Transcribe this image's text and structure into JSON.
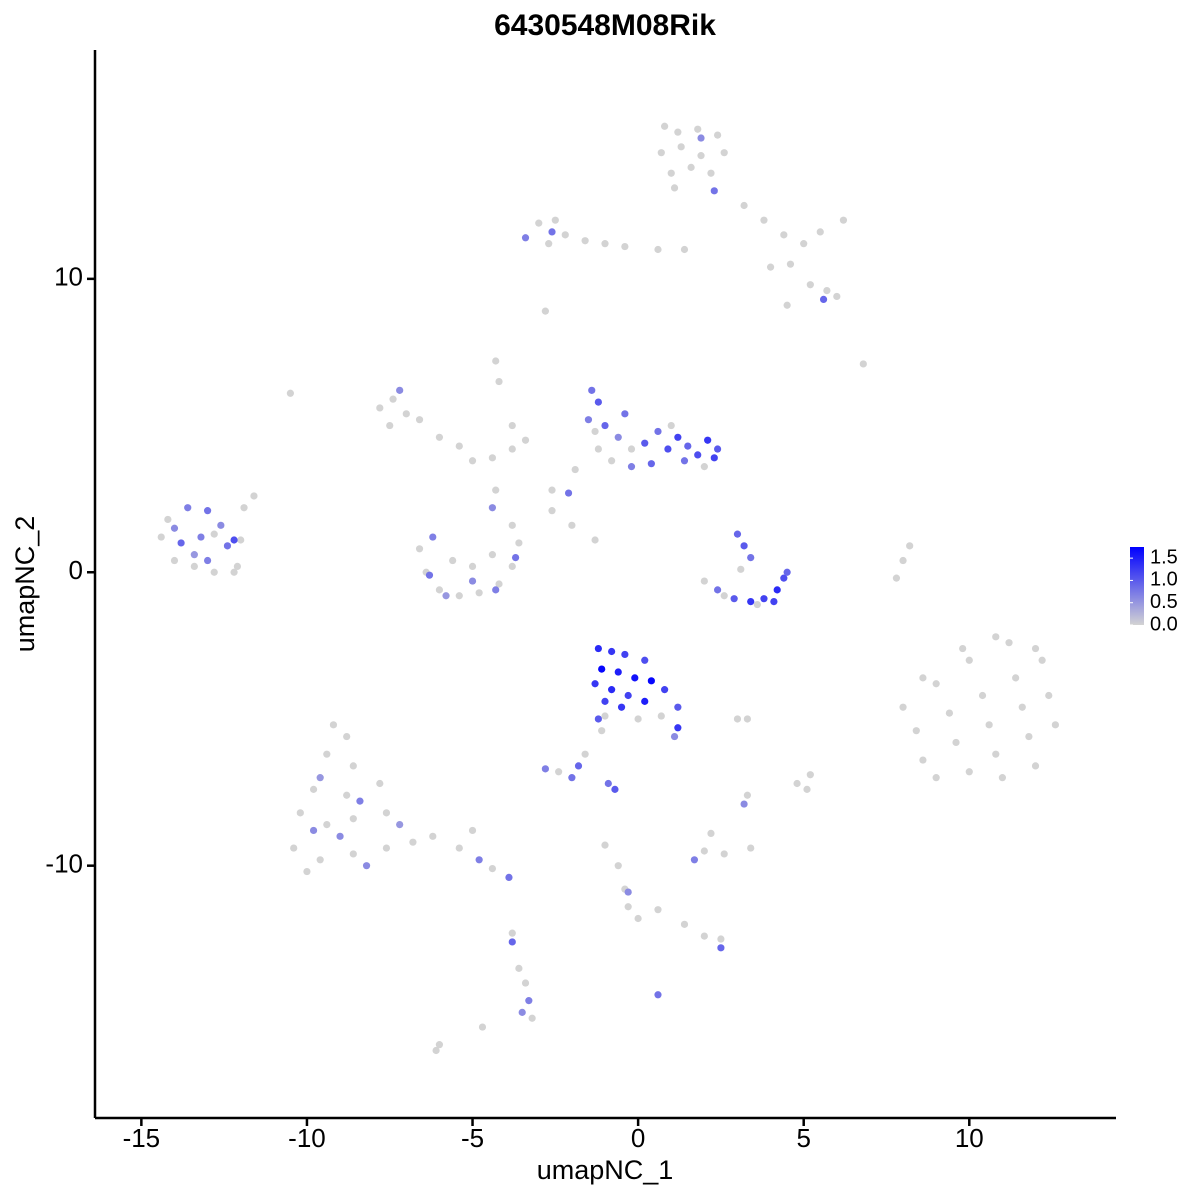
{
  "chart_data": {
    "type": "scatter",
    "title": "6430548M08Rik",
    "x_label": "umapNC_1",
    "y_label": "umapNC_2",
    "xlim": [
      -16.4,
      14.4
    ],
    "ylim": [
      -18.6,
      17.8
    ],
    "xticks": [
      -15,
      -10,
      -5,
      0,
      5,
      10
    ],
    "yticks": [
      -10,
      0,
      10
    ],
    "low_color": "#d3d3d3",
    "high_color": "#0000ff",
    "color_lim": [
      0,
      1.75
    ],
    "color_ticks": [
      {
        "value": 0,
        "label": "0.0"
      },
      0.5,
      {
        "value": 1,
        "label": "1.0"
      },
      1.5
    ],
    "x": [
      0.8,
      1.2,
      1.8,
      2.4,
      0.7,
      1.3,
      1.9,
      2.6,
      1.0,
      1.6,
      2.2,
      1.9,
      2.3,
      1.1,
      3.2,
      3.8,
      4.4,
      5.0,
      5.5,
      4.6,
      5.2,
      5.7,
      6.0,
      4.5,
      5.6,
      6.2,
      4.0,
      -3.0,
      -2.5,
      -2.2,
      -1.6,
      -1.0,
      -0.4,
      0.6,
      1.4,
      -2.7,
      -3.4,
      -2.6,
      -2.8,
      -7.8,
      -7.4,
      -7.0,
      -7.5,
      -6.6,
      -6.0,
      -5.4,
      -5.0,
      -4.4,
      -3.8,
      -7.2,
      -4.2,
      -4.3,
      -3.8,
      -3.4,
      -10.5,
      -6.6,
      -6.4,
      -6.0,
      -5.4,
      -4.8,
      -4.2,
      -3.8,
      -3.6,
      -3.8,
      -4.4,
      -5.0,
      -5.6,
      -6.2,
      -6.3,
      -5.0,
      -3.7,
      -4.3,
      -4.4,
      -5.8,
      -4.3,
      -14.4,
      -14.0,
      -13.4,
      -12.8,
      -12.2,
      -14.2,
      -13.6,
      -13.0,
      -12.6,
      -13.8,
      -13.2,
      -12.4,
      -14.0,
      -13.4,
      -12.8,
      -12.0,
      -13.0,
      -12.1,
      -11.6,
      -11.9,
      -12.2,
      -1.4,
      -1.2,
      -1.5,
      -1.0,
      -0.6,
      -1.2,
      -0.8,
      -0.2,
      0.2,
      0.6,
      0.9,
      1.2,
      1.5,
      1.8,
      2.1,
      2.3,
      2.0,
      1.4,
      0.4,
      -0.4,
      -1.3,
      -0.2,
      1.0,
      2.4,
      -1.9,
      -2.6,
      -2.1,
      -2.6,
      -2.0,
      -1.3,
      3.0,
      3.2,
      3.4,
      3.1,
      2.0,
      2.4,
      2.9,
      3.4,
      3.8,
      4.2,
      4.4,
      4.5,
      3.6,
      2.6,
      4.1,
      8.2,
      8.0,
      7.8,
      6.8,
      -1.2,
      -0.8,
      -0.4,
      0.2,
      -1.1,
      -0.6,
      -0.1,
      0.4,
      -1.3,
      -0.8,
      -0.3,
      0.2,
      -1.0,
      -0.5,
      0.8,
      1.2,
      1.2,
      1.1,
      -1.2,
      0.0,
      0.7,
      -1.0,
      3.0,
      8.0,
      8.4,
      8.6,
      9.0,
      9.0,
      9.4,
      9.6,
      10.0,
      10.0,
      10.4,
      10.6,
      10.8,
      11.0,
      11.2,
      11.4,
      11.6,
      11.8,
      12.0,
      12.2,
      12.4,
      12.6,
      9.8,
      10.8,
      8.6,
      12.0,
      -9.2,
      -8.8,
      -9.4,
      -8.6,
      -9.8,
      -8.8,
      -7.8,
      -10.2,
      -9.4,
      -8.6,
      -7.6,
      -10.4,
      -9.6,
      -8.6,
      -7.6,
      -6.8,
      -9.0,
      -8.4,
      -9.8,
      -7.2,
      -10.0,
      -6.2,
      -5.4,
      -4.8,
      -4.4,
      -3.9,
      -5.0,
      -8.2,
      -9.6,
      -2.8,
      -2.4,
      -2.0,
      -1.8,
      -1.6,
      -1.1,
      -0.9,
      -0.7,
      3.3,
      2.0,
      2.6,
      1.7,
      2.2,
      3.4,
      3.3,
      3.2,
      4.8,
      5.1,
      5.2,
      -1.0,
      -0.6,
      -0.4,
      -0.3,
      0.0,
      -0.3,
      0.6,
      1.4,
      2.0,
      2.5,
      2.5,
      0.6,
      -3.8,
      -3.8,
      -3.6,
      -3.4,
      -3.3,
      -3.5,
      -3.2,
      -4.7,
      -6.0,
      -6.1
    ],
    "y": [
      15.2,
      15.0,
      15.1,
      14.9,
      14.3,
      14.5,
      14.2,
      14.3,
      13.6,
      13.8,
      13.6,
      14.8,
      13.0,
      13.1,
      12.5,
      12.0,
      11.5,
      11.2,
      11.6,
      10.5,
      9.8,
      9.6,
      9.4,
      9.1,
      9.3,
      12.0,
      10.4,
      11.9,
      12.0,
      11.5,
      11.3,
      11.2,
      11.1,
      11.0,
      11.0,
      11.2,
      11.4,
      11.6,
      8.9,
      5.6,
      5.9,
      5.4,
      5.0,
      5.2,
      4.6,
      4.3,
      3.8,
      3.9,
      4.2,
      6.2,
      6.5,
      7.2,
      5.0,
      4.5,
      6.1,
      0.8,
      0.0,
      -0.6,
      -0.8,
      -0.7,
      -0.4,
      0.2,
      1.0,
      1.6,
      0.6,
      0.2,
      0.4,
      1.2,
      -0.1,
      -0.3,
      0.5,
      -0.6,
      2.2,
      -0.8,
      2.8,
      1.2,
      0.4,
      0.2,
      0.0,
      0.0,
      1.8,
      2.2,
      2.1,
      1.6,
      1.0,
      1.2,
      0.9,
      1.5,
      0.6,
      1.3,
      1.1,
      0.4,
      0.2,
      2.6,
      2.2,
      1.1,
      6.2,
      5.8,
      5.2,
      5.0,
      4.6,
      4.2,
      3.8,
      3.6,
      4.4,
      4.8,
      4.2,
      4.6,
      4.3,
      4.0,
      4.5,
      3.9,
      3.6,
      3.8,
      3.7,
      5.4,
      4.8,
      4.2,
      5.0,
      4.2,
      3.5,
      2.8,
      2.7,
      2.1,
      1.6,
      1.1,
      1.3,
      0.9,
      0.5,
      0.1,
      -0.3,
      -0.6,
      -0.9,
      -1.0,
      -0.9,
      -0.6,
      -0.2,
      0.0,
      -1.1,
      -0.8,
      -1.0,
      0.9,
      0.4,
      -0.2,
      7.1,
      -2.6,
      -2.7,
      -2.8,
      -3.0,
      -3.3,
      -3.4,
      -3.6,
      -3.7,
      -3.8,
      -4.0,
      -4.2,
      -4.4,
      -4.4,
      -4.6,
      -4.0,
      -4.6,
      -5.3,
      -5.6,
      -5.0,
      -5.0,
      -4.9,
      -4.9,
      -5.0,
      -4.6,
      -5.4,
      -6.4,
      -7.0,
      -3.8,
      -4.8,
      -5.8,
      -6.8,
      -3.0,
      -4.2,
      -5.2,
      -6.2,
      -7.0,
      -2.4,
      -3.6,
      -4.6,
      -5.6,
      -6.6,
      -3.0,
      -4.2,
      -5.2,
      -2.6,
      -2.2,
      -3.6,
      -2.6,
      -5.2,
      -5.6,
      -6.2,
      -6.6,
      -7.4,
      -7.6,
      -7.2,
      -8.2,
      -8.6,
      -8.4,
      -8.2,
      -9.4,
      -9.8,
      -9.6,
      -9.4,
      -9.2,
      -9.0,
      -7.8,
      -8.8,
      -8.6,
      -10.2,
      -9.0,
      -9.4,
      -9.8,
      -10.1,
      -10.4,
      -8.8,
      -10.0,
      -7.0,
      -6.7,
      -6.8,
      -7.0,
      -6.6,
      -6.2,
      -5.4,
      -7.2,
      -7.4,
      -5.0,
      -9.5,
      -9.6,
      -9.8,
      -8.9,
      -9.4,
      -7.6,
      -7.9,
      -7.2,
      -7.4,
      -6.9,
      -9.3,
      -10.0,
      -10.8,
      -11.4,
      -11.8,
      -10.9,
      -11.5,
      -12.0,
      -12.4,
      -12.5,
      -12.8,
      -14.4,
      -12.3,
      -12.6,
      -13.5,
      -14.0,
      -14.6,
      -15.0,
      -15.2,
      -15.5,
      -16.1,
      -16.3
    ],
    "expression": [
      0,
      0,
      0,
      0,
      0,
      0,
      0,
      0,
      0,
      0,
      0,
      0.6,
      0.8,
      0,
      0,
      0,
      0,
      0,
      0,
      0,
      0,
      0,
      0,
      0,
      0.9,
      0,
      0,
      0,
      0,
      0,
      0,
      0,
      0,
      0,
      0,
      0,
      0.7,
      0.8,
      0,
      0,
      0,
      0,
      0,
      0,
      0,
      0,
      0,
      0,
      0,
      0.6,
      0,
      0,
      0,
      0,
      0,
      0,
      0,
      0,
      0,
      0,
      0,
      0,
      0,
      0,
      0,
      0,
      0,
      0.7,
      0.8,
      0.6,
      0.8,
      0.7,
      0.6,
      0.5,
      0,
      0,
      0,
      0,
      0,
      0,
      0,
      0.7,
      0.8,
      0.6,
      0.9,
      0.7,
      0.8,
      0.6,
      0.5,
      0,
      0,
      0.7,
      0,
      0,
      0,
      1.1,
      0.8,
      1.0,
      0.7,
      0.9,
      0.6,
      0,
      0,
      0.7,
      1.0,
      0.8,
      1.1,
      1.2,
      0.9,
      1.1,
      1.3,
      1.2,
      0,
      0.8,
      0.9,
      0.8,
      0,
      0,
      0,
      1.0,
      0,
      0,
      0.8,
      0,
      0,
      0,
      0.9,
      1.0,
      0.8,
      0,
      0,
      0.8,
      1.0,
      1.3,
      1.2,
      1.4,
      1.1,
      0.9,
      0,
      0,
      1.2,
      0,
      0,
      0,
      0,
      1.4,
      1.3,
      1.2,
      1.1,
      1.7,
      1.5,
      1.6,
      1.7,
      1.3,
      1.4,
      1.2,
      1.5,
      1.2,
      1.3,
      1.2,
      1.0,
      1.3,
      0.6,
      1.0,
      0,
      0,
      0,
      0,
      0,
      0,
      0,
      0,
      0,
      0,
      0,
      0,
      0,
      0,
      0,
      0,
      0,
      0,
      0,
      0,
      0,
      0,
      0,
      0,
      0,
      0,
      0,
      0,
      0,
      0,
      0,
      0,
      0,
      0,
      0,
      0,
      0,
      0,
      0,
      0,
      0,
      0,
      0,
      0,
      0,
      0.6,
      0.7,
      0.6,
      0.5,
      0,
      0,
      0,
      0.7,
      0,
      0.8,
      0,
      0.6,
      0.5,
      0.7,
      0,
      0.8,
      0.9,
      0,
      0,
      0.8,
      1.0,
      0,
      0,
      0,
      0.7,
      0,
      0,
      0,
      0.6,
      0,
      0,
      0,
      0,
      0,
      0,
      0,
      0,
      0.6,
      0,
      0,
      0,
      0,
      0.9,
      0.8,
      0,
      0.9,
      0,
      0,
      0.7,
      0.6,
      0,
      0,
      0,
      0
    ]
  }
}
